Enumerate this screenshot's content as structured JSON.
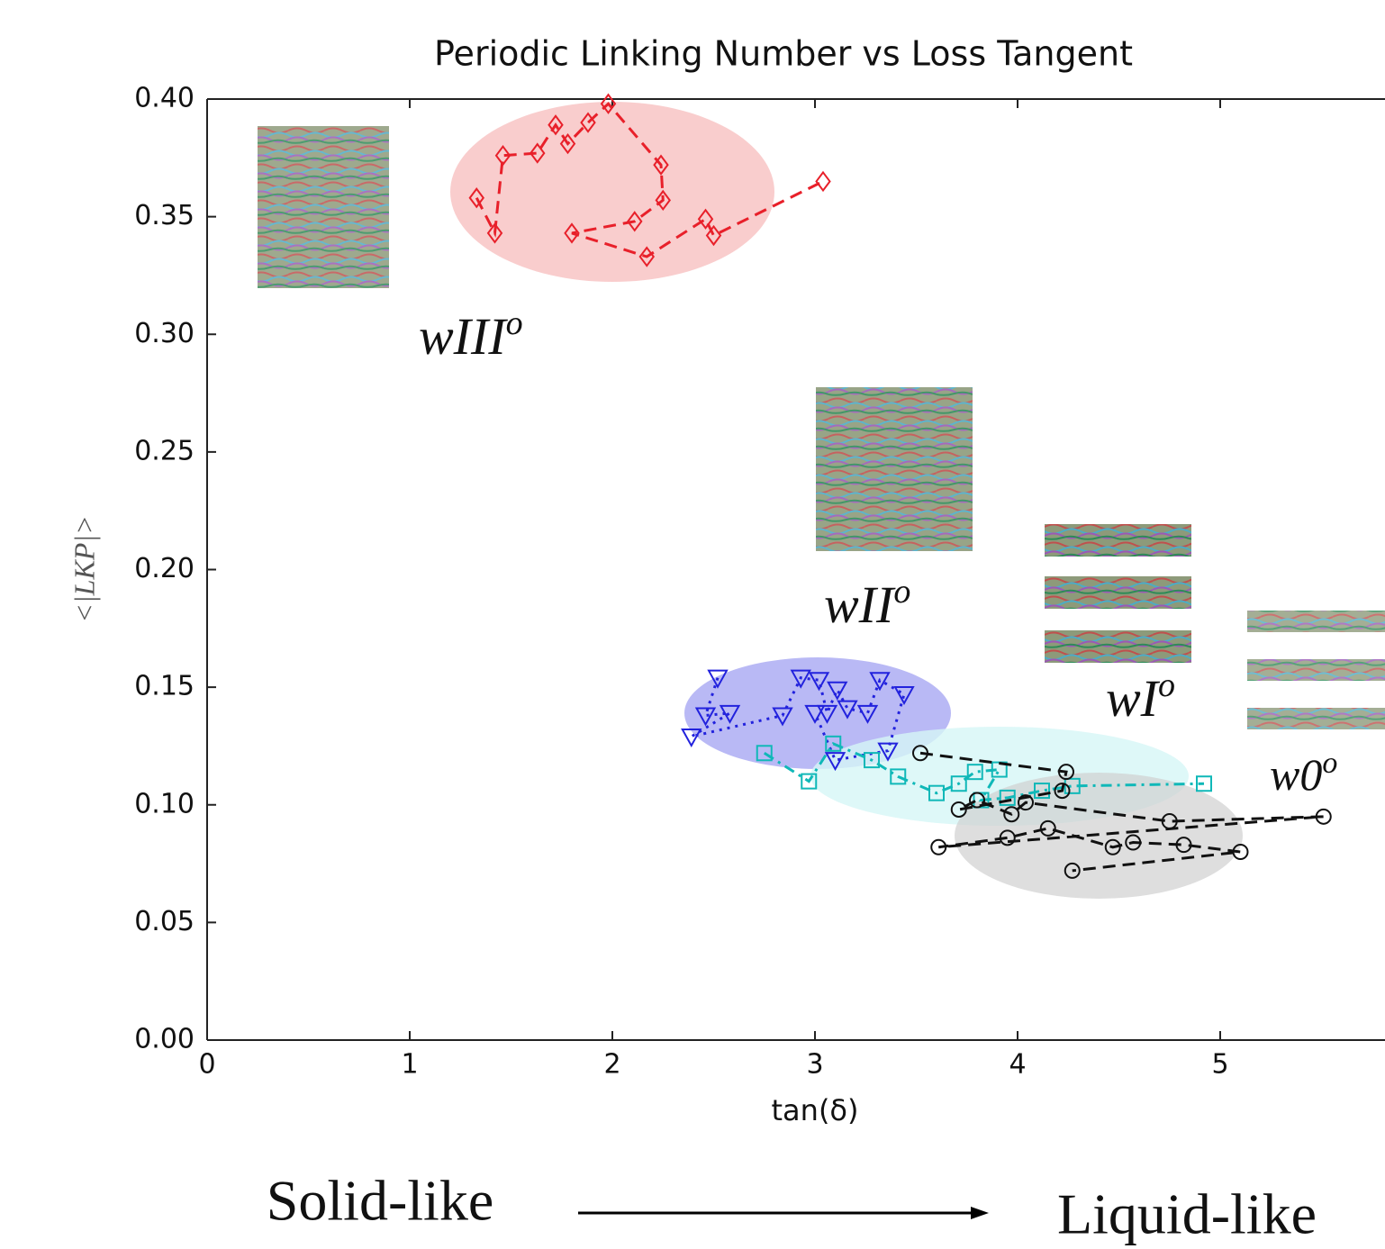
{
  "chart_data": {
    "type": "scatter",
    "title": "Periodic Linking Number vs Loss Tangent",
    "x_label": "tan(δ)",
    "y_label": "<|LKP|>",
    "xlim": [
      0,
      5.8
    ],
    "ylim": [
      0,
      0.4
    ],
    "xticks": [
      0,
      1,
      2,
      3,
      4,
      5
    ],
    "yticks": [
      {
        "value": 0,
        "label": "0.00"
      },
      {
        "value": 0.05,
        "label": "0.05"
      },
      {
        "value": 0.1,
        "label": "0.10"
      },
      {
        "value": 0.15,
        "label": "0.15"
      },
      {
        "value": 0.2,
        "label": "0.20"
      },
      {
        "value": 0.25,
        "label": "0.25"
      },
      {
        "value": 0.3,
        "label": "0.30"
      },
      {
        "value": 0.35,
        "label": "0.35"
      },
      {
        "value": 0.4,
        "label": "0.40"
      }
    ],
    "grid": false,
    "series": [
      {
        "color": "#e8202a",
        "marker": "diamond",
        "linestyle": "dashed",
        "x": [
          1.33,
          1.42,
          1.46,
          1.63,
          1.72,
          1.78,
          1.88,
          1.98,
          2.24,
          2.25,
          2.11,
          1.8,
          2.17,
          2.46,
          2.5,
          3.04
        ],
        "values": [
          0.358,
          0.343,
          0.376,
          0.377,
          0.389,
          0.381,
          0.39,
          0.398,
          0.372,
          0.357,
          0.348,
          0.343,
          0.333,
          0.349,
          0.342,
          0.365
        ]
      },
      {
        "color": "#2222dd",
        "marker": "triangle",
        "linestyle": "dotted",
        "x": [
          2.52,
          2.46,
          2.58,
          2.39,
          2.84,
          2.93,
          3.02,
          3.06,
          3.11,
          3.16,
          3.26,
          3.32,
          3.44,
          3.36,
          3.1,
          3.0
        ],
        "values": [
          0.154,
          0.138,
          0.139,
          0.129,
          0.138,
          0.154,
          0.153,
          0.139,
          0.149,
          0.141,
          0.139,
          0.153,
          0.147,
          0.123,
          0.119,
          0.139
        ]
      },
      {
        "color": "#10b8b8",
        "marker": "square",
        "linestyle": "dashdot",
        "x": [
          2.75,
          2.97,
          3.09,
          3.28,
          3.41,
          3.6,
          3.71,
          3.79,
          3.91,
          3.82,
          3.95,
          4.12,
          4.27,
          4.92
        ],
        "values": [
          0.122,
          0.11,
          0.126,
          0.119,
          0.112,
          0.105,
          0.109,
          0.114,
          0.115,
          0.102,
          0.103,
          0.106,
          0.108,
          0.109
        ]
      },
      {
        "color": "#111111",
        "marker": "circle",
        "linestyle": "dashed",
        "x": [
          3.52,
          4.24,
          4.22,
          3.71,
          3.8,
          3.97,
          4.04,
          4.75,
          5.51,
          3.61,
          3.95,
          4.15,
          4.47,
          4.57,
          4.82,
          5.1,
          4.27
        ],
        "values": [
          0.122,
          0.114,
          0.106,
          0.098,
          0.102,
          0.096,
          0.101,
          0.093,
          0.095,
          0.082,
          0.086,
          0.09,
          0.082,
          0.084,
          0.083,
          0.08,
          0.072
        ]
      }
    ],
    "annotations": [
      {
        "text": "wIII",
        "sup": "o"
      },
      {
        "text": "wII",
        "sup": "o"
      },
      {
        "text": "wI",
        "sup": "o"
      },
      {
        "text": "w0",
        "sup": "o"
      }
    ],
    "footer": {
      "left": "Solid-like",
      "right": "Liquid-like"
    }
  }
}
